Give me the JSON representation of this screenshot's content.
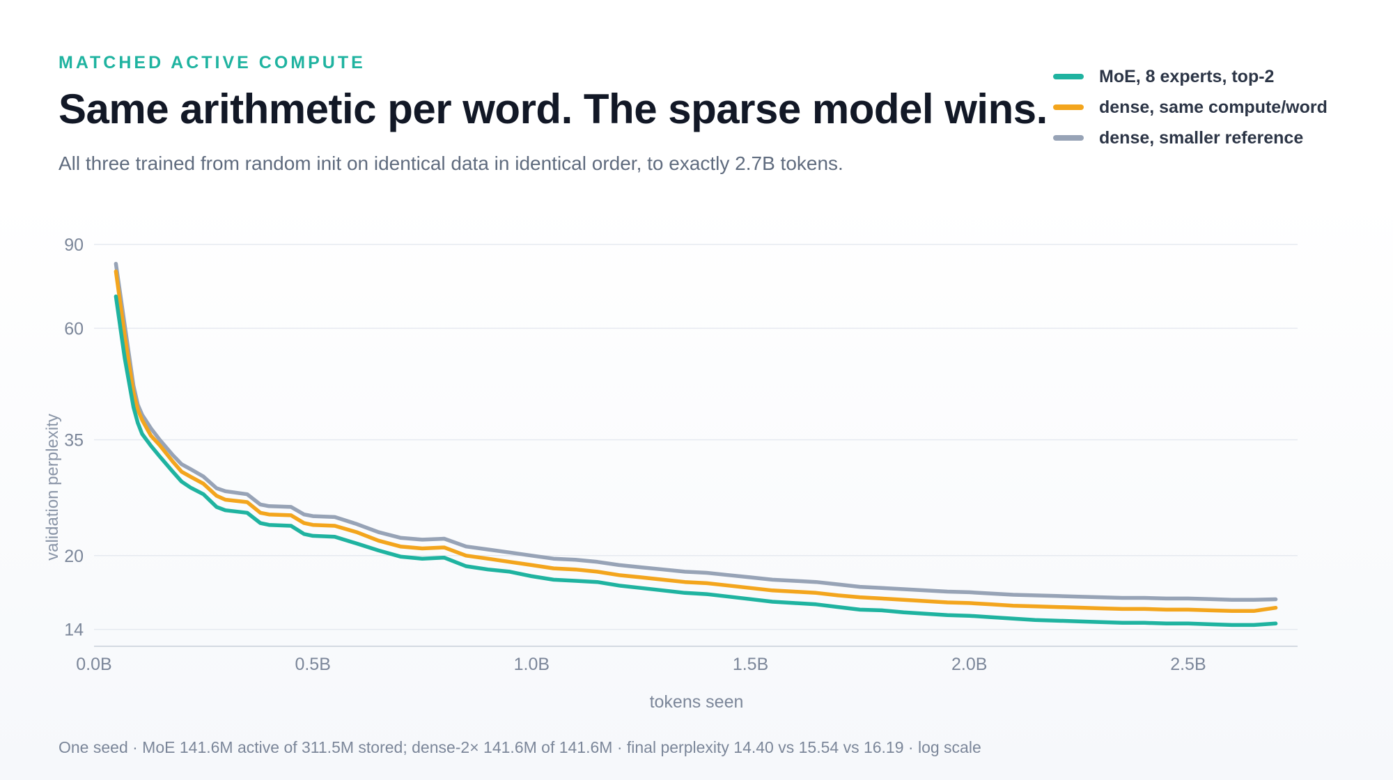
{
  "header": {
    "eyebrow": "MATCHED ACTIVE COMPUTE",
    "title": "Same arithmetic per word. The sparse model wins.",
    "subtitle": "All three trained from random init on identical data in identical order, to exactly 2.7B tokens."
  },
  "footnote": "One seed · MoE 141.6M active of 311.5M stored; dense-2× 141.6M of 141.6M · final perplexity 14.40 vs 15.54 vs 16.19 · log scale",
  "chart_data": {
    "type": "line",
    "title": "Same arithmetic per word. The sparse model wins.",
    "xlabel": "tokens seen",
    "ylabel": "validation perplexity",
    "y_scale": "log",
    "xlim": [
      0,
      2.75
    ],
    "ylim": [
      12.9,
      90
    ],
    "x_ticks": [
      {
        "value": 0.0,
        "label": "0.0B"
      },
      {
        "value": 0.5,
        "label": "0.5B"
      },
      {
        "value": 1.0,
        "label": "1.0B"
      },
      {
        "value": 1.5,
        "label": "1.5B"
      },
      {
        "value": 2.0,
        "label": "2.0B"
      },
      {
        "value": 2.5,
        "label": "2.5B"
      }
    ],
    "y_ticks": [
      {
        "value": 90,
        "label": "90"
      },
      {
        "value": 60,
        "label": "60"
      },
      {
        "value": 35,
        "label": "35"
      },
      {
        "value": 20,
        "label": "20"
      },
      {
        "value": 14,
        "label": "14"
      }
    ],
    "grid": true,
    "legend_position": "top-right",
    "x": [
      0.05,
      0.07,
      0.09,
      0.1,
      0.11,
      0.13,
      0.15,
      0.18,
      0.2,
      0.22,
      0.25,
      0.28,
      0.3,
      0.35,
      0.38,
      0.4,
      0.45,
      0.48,
      0.5,
      0.55,
      0.6,
      0.65,
      0.7,
      0.75,
      0.8,
      0.85,
      0.9,
      0.95,
      1.0,
      1.05,
      1.1,
      1.15,
      1.2,
      1.25,
      1.3,
      1.35,
      1.4,
      1.45,
      1.5,
      1.55,
      1.6,
      1.65,
      1.7,
      1.75,
      1.8,
      1.85,
      1.9,
      1.95,
      2.0,
      2.05,
      2.1,
      2.15,
      2.2,
      2.25,
      2.3,
      2.35,
      2.4,
      2.45,
      2.5,
      2.55,
      2.6,
      2.65,
      2.7
    ],
    "series": [
      {
        "name": "MoE, 8 experts, top-2",
        "color": "#1fb3a0",
        "values": [
          70,
          52,
          41,
          38,
          36,
          34,
          32.3,
          30,
          28.6,
          27.8,
          26.9,
          25.3,
          24.9,
          24.6,
          23.4,
          23.2,
          23.1,
          22.2,
          22.0,
          21.9,
          21.2,
          20.5,
          19.9,
          19.7,
          19.8,
          19.0,
          18.7,
          18.5,
          18.1,
          17.8,
          17.7,
          17.6,
          17.3,
          17.1,
          16.9,
          16.7,
          16.6,
          16.4,
          16.2,
          16.0,
          15.9,
          15.8,
          15.6,
          15.4,
          15.35,
          15.2,
          15.1,
          15.0,
          14.95,
          14.85,
          14.75,
          14.65,
          14.6,
          14.55,
          14.5,
          14.45,
          14.45,
          14.4,
          14.4,
          14.35,
          14.3,
          14.3,
          14.4
        ]
      },
      {
        "name": "dense, same compute/word",
        "color": "#f3a51d",
        "values": [
          79,
          58,
          44,
          40.5,
          38.5,
          35.7,
          34.1,
          31.5,
          30.0,
          29.3,
          28.3,
          26.7,
          26.2,
          25.9,
          24.6,
          24.4,
          24.3,
          23.4,
          23.2,
          23.1,
          22.4,
          21.5,
          20.9,
          20.7,
          20.8,
          20.0,
          19.7,
          19.4,
          19.1,
          18.8,
          18.7,
          18.5,
          18.2,
          18.0,
          17.8,
          17.6,
          17.5,
          17.3,
          17.1,
          16.9,
          16.8,
          16.7,
          16.5,
          16.35,
          16.25,
          16.15,
          16.05,
          15.95,
          15.9,
          15.8,
          15.7,
          15.65,
          15.6,
          15.55,
          15.5,
          15.45,
          15.45,
          15.4,
          15.4,
          15.35,
          15.3,
          15.3,
          15.54
        ]
      },
      {
        "name": "dense, smaller reference",
        "color": "#97a3b6",
        "values": [
          82,
          61,
          45.5,
          41.5,
          39.5,
          37,
          35,
          32.5,
          31.1,
          30.4,
          29.3,
          27.7,
          27.3,
          26.9,
          25.6,
          25.4,
          25.3,
          24.4,
          24.2,
          24.1,
          23.3,
          22.4,
          21.8,
          21.6,
          21.7,
          20.9,
          20.6,
          20.3,
          20.0,
          19.7,
          19.6,
          19.4,
          19.1,
          18.9,
          18.7,
          18.5,
          18.4,
          18.2,
          18.0,
          17.8,
          17.7,
          17.6,
          17.4,
          17.2,
          17.1,
          17.0,
          16.9,
          16.8,
          16.75,
          16.65,
          16.55,
          16.5,
          16.45,
          16.4,
          16.35,
          16.3,
          16.3,
          16.25,
          16.25,
          16.2,
          16.15,
          16.15,
          16.19
        ]
      }
    ]
  }
}
